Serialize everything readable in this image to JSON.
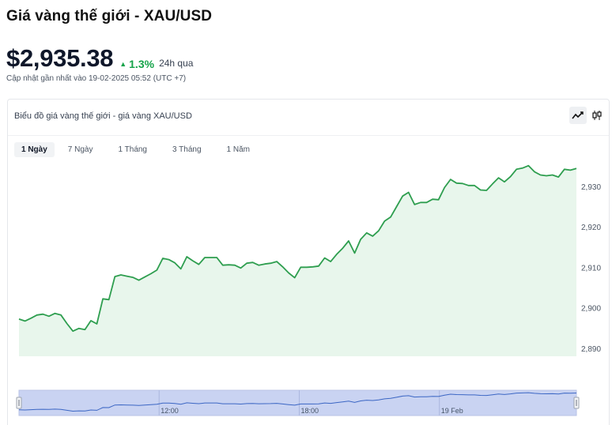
{
  "page": {
    "title": "Giá vàng thế giới - XAU/USD",
    "price": "$2,935.38",
    "change": "1.3%",
    "change_period": "24h qua",
    "updated": "Cập nhật gần nhất vào 19-02-2025 05:52 (UTC +7)"
  },
  "card": {
    "title": "Biểu đồ giá vàng thế giới - giá vàng XAU/USD",
    "tabs": [
      "1 Ngày",
      "7 Ngày",
      "1 Tháng",
      "3 Tháng",
      "1 Năm"
    ],
    "active_tab": 0,
    "chart_types": [
      "line-chart-icon",
      "candlestick-icon"
    ]
  },
  "colors": {
    "line": "#2e9e4f",
    "fill": "#e8f6ec",
    "navigator_fill": "#c9d3f2",
    "navigator_line": "#3b66c4",
    "up": "#16a34a"
  },
  "chart_data": {
    "type": "area",
    "title": "",
    "xlabel": "",
    "ylabel": "",
    "ylim": [
      2888,
      2937
    ],
    "yticks": [
      2890,
      2900,
      2910,
      2920,
      2930
    ],
    "ytick_labels": [
      "2,890",
      "2,900",
      "2,910",
      "2,920",
      "2,930"
    ],
    "x_start": "2025-02-18 06:00",
    "x_end": "2025-02-19 05:52",
    "navigator_ticks": [
      {
        "t": "2025-02-18 12:00",
        "label": "12:00"
      },
      {
        "t": "2025-02-18 18:00",
        "label": "18:00"
      },
      {
        "t": "2025-02-19 00:00",
        "label": "19 Feb"
      }
    ],
    "series": [
      {
        "values": [
          2897.2,
          2896.7,
          2897.4,
          2898.2,
          2898.4,
          2897.9,
          2898.6,
          2898.2,
          2896.1,
          2894.2,
          2894.9,
          2894.6,
          2896.8,
          2896.0,
          2902.2,
          2902.0,
          2907.7,
          2908.1,
          2907.8,
          2907.5,
          2906.8,
          2907.6,
          2908.4,
          2909.3,
          2912.2,
          2911.9,
          2911.1,
          2909.6,
          2912.6,
          2911.6,
          2910.7,
          2912.4,
          2912.4,
          2912.4,
          2910.5,
          2910.6,
          2910.5,
          2909.8,
          2911.0,
          2911.2,
          2910.5,
          2910.8,
          2911.0,
          2911.4,
          2910.1,
          2908.6,
          2907.4,
          2910.0,
          2910.0,
          2910.1,
          2910.3,
          2912.3,
          2911.4,
          2913.2,
          2914.7,
          2916.5,
          2913.5,
          2916.9,
          2918.5,
          2917.7,
          2919.0,
          2921.4,
          2922.4,
          2925.0,
          2927.6,
          2928.5,
          2925.5,
          2926.0,
          2926.0,
          2926.8,
          2926.7,
          2929.7,
          2931.7,
          2930.8,
          2930.7,
          2930.2,
          2930.2,
          2929.1,
          2929.0,
          2930.6,
          2932.1,
          2931.1,
          2932.4,
          2934.2,
          2934.5,
          2935.1,
          2933.6,
          2932.8,
          2932.6,
          2932.8,
          2932.3,
          2934.2,
          2934.0,
          2934.4
        ]
      }
    ]
  }
}
